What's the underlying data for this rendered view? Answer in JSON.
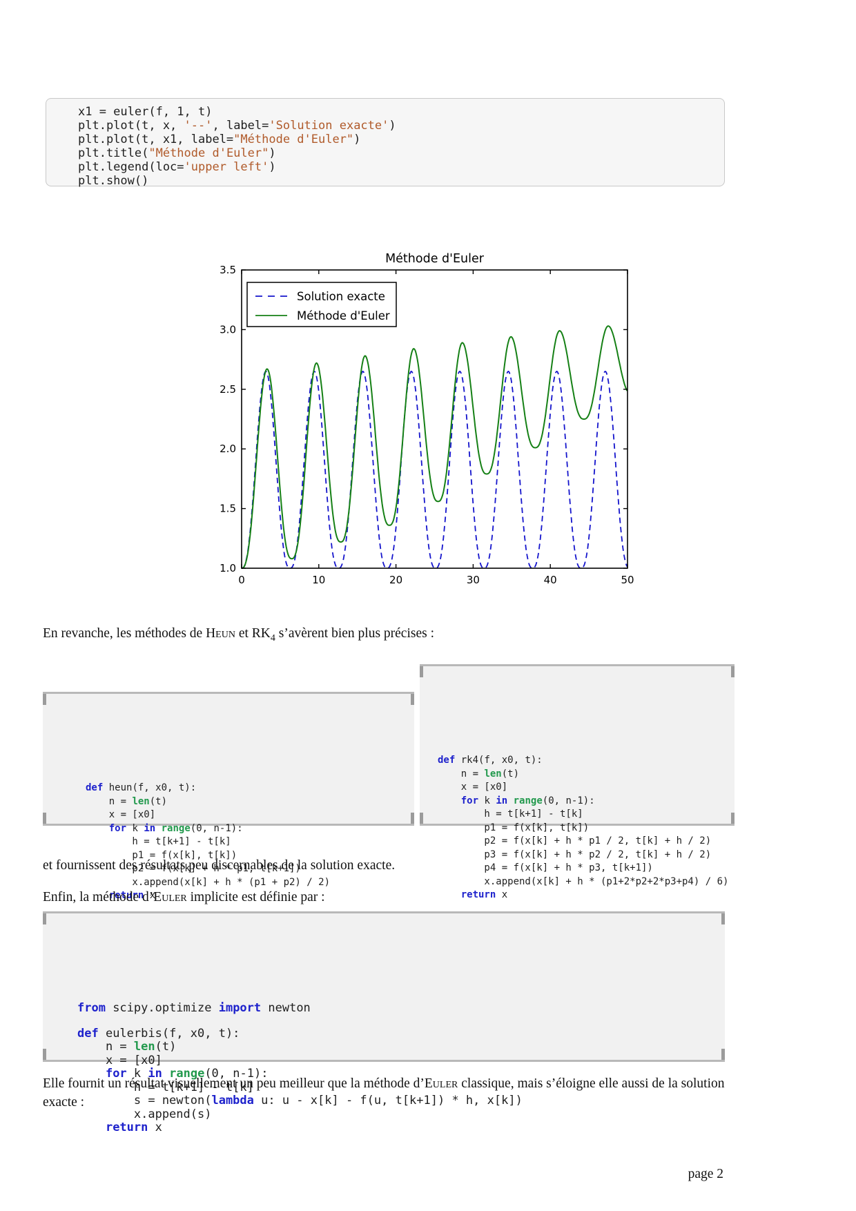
{
  "page": {
    "number_label": "page 2"
  },
  "paragraphs": {
    "p1": [
      [
        "n",
        "En revanche, les méthodes de "
      ],
      [
        "sc",
        "Heun"
      ],
      [
        "n",
        " et RK"
      ],
      [
        "sub",
        "4"
      ],
      [
        "n",
        " s’avèrent bien plus précises :"
      ]
    ],
    "p2": [
      [
        "n",
        "et fournissent des résultats peu discernables de la solution exacte."
      ]
    ],
    "p3": [
      [
        "n",
        "Enfin, la méthode d’"
      ],
      [
        "sc",
        "Euler"
      ],
      [
        "n",
        " implicite est définie par :"
      ]
    ],
    "p4": [
      [
        "n",
        "Elle fournit un résultat visuellement un peu meilleur que la méthode d’"
      ],
      [
        "sc",
        "Euler"
      ],
      [
        "n",
        " classique, mais s’éloigne elle aussi de la solution exacte :"
      ]
    ]
  },
  "codeblocks": {
    "euler_plot": {
      "lines": [
        [
          [
            "p",
            "x1 = euler(f, 1, t)"
          ]
        ],
        [
          [
            "p",
            "plt.plot(t, x, "
          ],
          [
            "s",
            "'--'"
          ],
          [
            "p",
            ", label="
          ],
          [
            "s",
            "'Solution exacte'"
          ],
          [
            "p",
            ")"
          ]
        ],
        [
          [
            "p",
            "plt.plot(t, x1, label="
          ],
          [
            "s",
            "\"Méthode d'Euler\""
          ],
          [
            "p",
            ")"
          ]
        ],
        [
          [
            "p",
            "plt.title("
          ],
          [
            "s",
            "\"Méthode d'Euler\""
          ],
          [
            "p",
            ")"
          ]
        ],
        [
          [
            "p",
            "plt.legend(loc="
          ],
          [
            "s",
            "'upper left'"
          ],
          [
            "p",
            ")"
          ]
        ],
        [
          [
            "p",
            "plt.show()"
          ]
        ]
      ]
    },
    "heun": {
      "lines": [
        [
          [
            "k",
            "def"
          ],
          [
            "p",
            " heun(f, x0, t):"
          ]
        ],
        [
          [
            "p",
            "    n = "
          ],
          [
            "b",
            "len"
          ],
          [
            "p",
            "(t)"
          ]
        ],
        [
          [
            "p",
            "    x = [x0]"
          ]
        ],
        [
          [
            "p",
            "    "
          ],
          [
            "k",
            "for"
          ],
          [
            "p",
            " k "
          ],
          [
            "k",
            "in"
          ],
          [
            "p",
            " "
          ],
          [
            "b",
            "range"
          ],
          [
            "p",
            "(0, n-1):"
          ]
        ],
        [
          [
            "p",
            "        h = t[k+1] - t[k]"
          ]
        ],
        [
          [
            "p",
            "        p1 = f(x[k], t[k])"
          ]
        ],
        [
          [
            "p",
            "        p2 = f(x[k] + h * p1, t[k+1])"
          ]
        ],
        [
          [
            "p",
            "        x.append(x[k] + h * (p1 + p2) / 2)"
          ]
        ],
        [
          [
            "p",
            "    "
          ],
          [
            "k",
            "return"
          ],
          [
            "p",
            " x"
          ]
        ]
      ]
    },
    "rk4": {
      "lines": [
        [
          [
            "k",
            "def"
          ],
          [
            "p",
            " rk4(f, x0, t):"
          ]
        ],
        [
          [
            "p",
            "    n = "
          ],
          [
            "b",
            "len"
          ],
          [
            "p",
            "(t)"
          ]
        ],
        [
          [
            "p",
            "    x = [x0]"
          ]
        ],
        [
          [
            "p",
            "    "
          ],
          [
            "k",
            "for"
          ],
          [
            "p",
            " k "
          ],
          [
            "k",
            "in"
          ],
          [
            "p",
            " "
          ],
          [
            "b",
            "range"
          ],
          [
            "p",
            "(0, n-1):"
          ]
        ],
        [
          [
            "p",
            "        h = t[k+1] - t[k]"
          ]
        ],
        [
          [
            "p",
            "        p1 = f(x[k], t[k])"
          ]
        ],
        [
          [
            "p",
            "        p2 = f(x[k] + h * p1 / 2, t[k] + h / 2)"
          ]
        ],
        [
          [
            "p",
            "        p3 = f(x[k] + h * p2 / 2, t[k] + h / 2)"
          ]
        ],
        [
          [
            "p",
            "        p4 = f(x[k] + h * p3, t[k+1])"
          ]
        ],
        [
          [
            "p",
            "        x.append(x[k] + h * (p1+2*p2+2*p3+p4) / 6)"
          ]
        ],
        [
          [
            "p",
            "    "
          ],
          [
            "k",
            "return"
          ],
          [
            "p",
            " x"
          ]
        ]
      ]
    },
    "eulerbis": {
      "lines": [
        [
          [
            "k",
            "from"
          ],
          [
            "p",
            " scipy.optimize "
          ],
          [
            "k",
            "import"
          ],
          [
            "p",
            " newton"
          ]
        ],
        [
          [
            "p",
            ""
          ]
        ],
        [
          [
            "k",
            "def"
          ],
          [
            "p",
            " eulerbis(f, x0, t):"
          ]
        ],
        [
          [
            "p",
            "    n = "
          ],
          [
            "b",
            "len"
          ],
          [
            "p",
            "(t)"
          ]
        ],
        [
          [
            "p",
            "    x = [x0]"
          ]
        ],
        [
          [
            "p",
            "    "
          ],
          [
            "k",
            "for"
          ],
          [
            "p",
            " k "
          ],
          [
            "k",
            "in"
          ],
          [
            "p",
            " "
          ],
          [
            "b",
            "range"
          ],
          [
            "p",
            "(0, n-1):"
          ]
        ],
        [
          [
            "p",
            "        h = t[k+1] - t[k]"
          ]
        ],
        [
          [
            "p",
            "        s = newton("
          ],
          [
            "k",
            "lambda"
          ],
          [
            "p",
            " u: u - x[k] - f(u, t[k+1]) * h, x[k])"
          ]
        ],
        [
          [
            "p",
            "        x.append(s)"
          ]
        ],
        [
          [
            "p",
            "    "
          ],
          [
            "k",
            "return"
          ],
          [
            "p",
            " x"
          ]
        ]
      ]
    }
  },
  "chart_data": {
    "type": "line",
    "title": "Méthode d'Euler",
    "xlabel": "",
    "ylabel": "",
    "xlim": [
      0,
      50
    ],
    "ylim": [
      1.0,
      3.5
    ],
    "xticks": [
      "0",
      "10",
      "20",
      "30",
      "40",
      "50"
    ],
    "yticks": [
      "1.0",
      "1.5",
      "2.0",
      "2.5",
      "3.0",
      "3.5"
    ],
    "grid": false,
    "legend": {
      "position": "upper left",
      "entries": [
        {
          "label": "Solution exacte",
          "color": "#1414cc",
          "dashed": true
        },
        {
          "label": "Méthode d'Euler",
          "color": "#158015",
          "dashed": false
        }
      ]
    },
    "series": [
      {
        "name": "Solution exacte",
        "style": "dashed",
        "color": "#1414cc",
        "width": 1.8,
        "extrema": [
          [
            0,
            1.0
          ],
          [
            3.14,
            2.65
          ],
          [
            6.28,
            1.0
          ],
          [
            9.42,
            2.65
          ],
          [
            12.57,
            1.0
          ],
          [
            15.71,
            2.65
          ],
          [
            18.85,
            1.0
          ],
          [
            21.99,
            2.65
          ],
          [
            25.13,
            1.0
          ],
          [
            28.27,
            2.65
          ],
          [
            31.42,
            1.0
          ],
          [
            34.56,
            2.65
          ],
          [
            37.7,
            1.0
          ],
          [
            40.84,
            2.65
          ],
          [
            43.98,
            1.0
          ],
          [
            47.12,
            2.65
          ],
          [
            50.27,
            1.0
          ]
        ]
      },
      {
        "name": "Méthode d'Euler",
        "style": "solid",
        "color": "#158015",
        "width": 2,
        "extrema": [
          [
            0,
            1.0
          ],
          [
            3.3,
            2.67
          ],
          [
            6.5,
            1.08
          ],
          [
            9.7,
            2.72
          ],
          [
            12.85,
            1.22
          ],
          [
            16.0,
            2.78
          ],
          [
            19.15,
            1.36
          ],
          [
            22.3,
            2.84
          ],
          [
            25.45,
            1.56
          ],
          [
            28.6,
            2.89
          ],
          [
            31.75,
            1.79
          ],
          [
            34.9,
            2.94
          ],
          [
            38.05,
            2.01
          ],
          [
            41.2,
            2.99
          ],
          [
            44.35,
            2.25
          ],
          [
            47.5,
            3.03
          ],
          [
            50.65,
            2.45
          ]
        ]
      }
    ]
  }
}
